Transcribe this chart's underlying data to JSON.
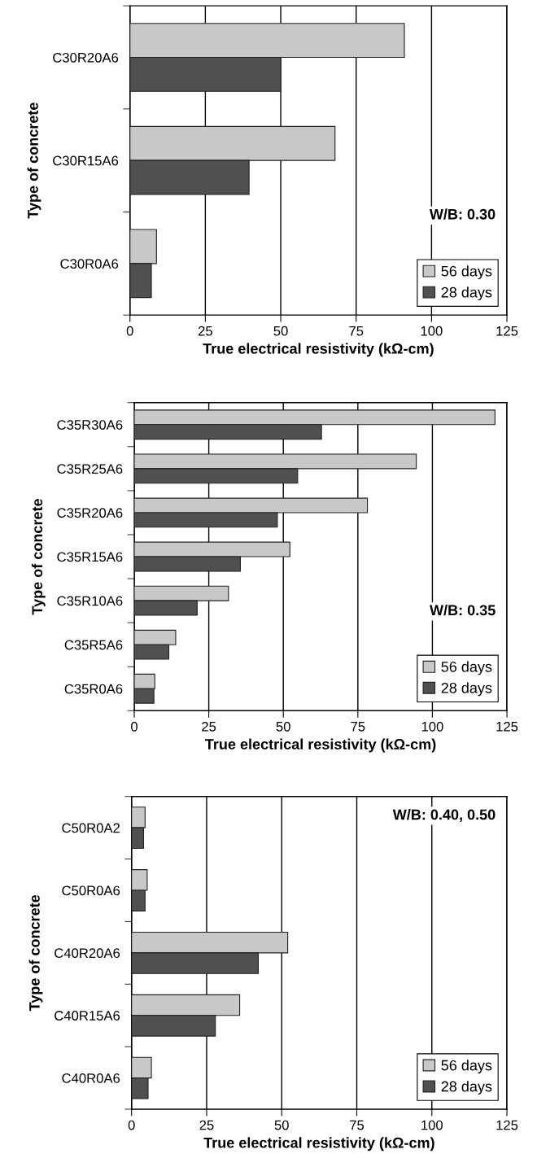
{
  "chart_data": [
    {
      "type": "bar",
      "orientation": "horizontal",
      "categories": [
        "C30R20A6",
        "C30R15A6",
        "C30R0A6"
      ],
      "series": [
        {
          "name": "56 days",
          "color": "#c8c8c8",
          "values": [
            91,
            68,
            8.8
          ]
        },
        {
          "name": "28 days",
          "color": "#505050",
          "values": [
            50,
            39.5,
            7.1
          ]
        }
      ],
      "xlim": [
        0,
        125
      ],
      "xticks": [
        0,
        25,
        50,
        75,
        100,
        125
      ],
      "xlabel": "True electrical resistivity (kΩ-cm)",
      "ylabel": "Type of concrete",
      "annotations": [
        "W/B: 0.30"
      ],
      "legend": "bottom right",
      "grid": "x"
    },
    {
      "type": "bar",
      "orientation": "horizontal",
      "categories": [
        "C35R30A6",
        "C35R25A6",
        "C35R20A6",
        "C35R15A6",
        "C35R10A6",
        "C35R5A6",
        "C35R0A6"
      ],
      "series": [
        {
          "name": "56 days",
          "color": "#c8c8c8",
          "values": [
            121,
            94.6,
            78.2,
            52.2,
            31.6,
            13.9,
            6.9
          ]
        },
        {
          "name": "28 days",
          "color": "#505050",
          "values": [
            62.8,
            54.8,
            48,
            35.6,
            21.1,
            11.6,
            6.6
          ]
        }
      ],
      "xlim": [
        0,
        125
      ],
      "xticks": [
        0,
        25,
        50,
        75,
        100,
        125
      ],
      "xlabel": "True electrical resistivity (kΩ-cm)",
      "ylabel": "Type of concrete",
      "annotations": [
        "W/B: 0.35"
      ],
      "legend": "bottom right",
      "grid": "x"
    },
    {
      "type": "bar",
      "orientation": "horizontal",
      "categories": [
        "C50R0A2",
        "C50R0A6",
        "C40R20A6",
        "C40R15A6",
        "C40R0A6"
      ],
      "series": [
        {
          "name": "56 days",
          "color": "#c8c8c8",
          "values": [
            4.5,
            5.2,
            52,
            36,
            6.6
          ]
        },
        {
          "name": "28 days",
          "color": "#505050",
          "values": [
            4,
            4.5,
            42.2,
            27.9,
            5.5
          ]
        }
      ],
      "xlim": [
        0,
        125
      ],
      "xticks": [
        0,
        25,
        50,
        75,
        100,
        125
      ],
      "xlabel": "True electrical resistivity (kΩ-cm)",
      "ylabel": "Type of concrete",
      "annotations": [
        "W/B: 0.40, 0.50"
      ],
      "legend": "bottom right",
      "grid": "x"
    }
  ]
}
